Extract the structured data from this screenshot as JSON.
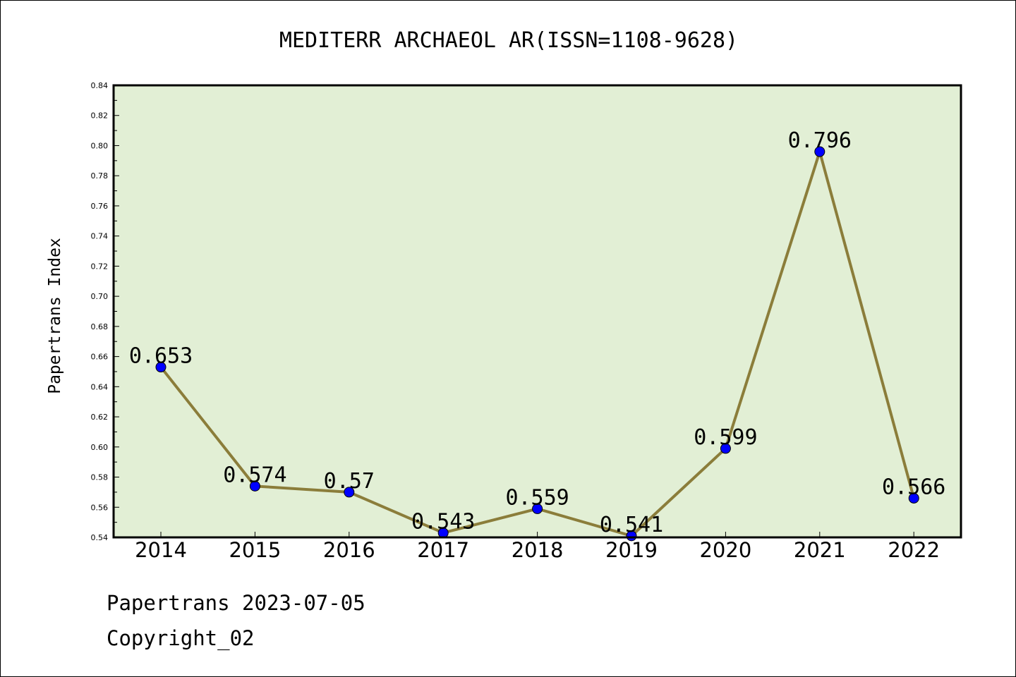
{
  "chart_data": {
    "type": "line",
    "title": "MEDITERR ARCHAEOL AR(ISSN=1108-9628)",
    "xlabel": "",
    "ylabel": "Papertrans Index",
    "categories": [
      "2014",
      "2015",
      "2016",
      "2017",
      "2018",
      "2019",
      "2020",
      "2021",
      "2022"
    ],
    "series": [
      {
        "values": [
          0.653,
          0.574,
          0.57,
          0.543,
          0.559,
          0.541,
          0.599,
          0.796,
          0.566
        ],
        "labels": [
          "0.653",
          "0.574",
          "0.57",
          "0.543",
          "0.559",
          "0.541",
          "0.599",
          "0.796",
          "0.566"
        ]
      }
    ],
    "ylim": [
      0.54,
      0.84
    ],
    "yticks": [
      "0.54",
      "0.56",
      "0.58",
      "0.60",
      "0.62",
      "0.64",
      "0.66",
      "0.68",
      "0.70",
      "0.72",
      "0.74",
      "0.76",
      "0.78",
      "0.80",
      "0.82",
      "0.84"
    ],
    "grid": false,
    "colors": {
      "plot_background": "#e2efd5",
      "line": "#8b7d3a",
      "marker": "#0000ff"
    }
  },
  "footer": {
    "line1": "Papertrans 2023-07-05",
    "line2": "Copyright_02"
  }
}
